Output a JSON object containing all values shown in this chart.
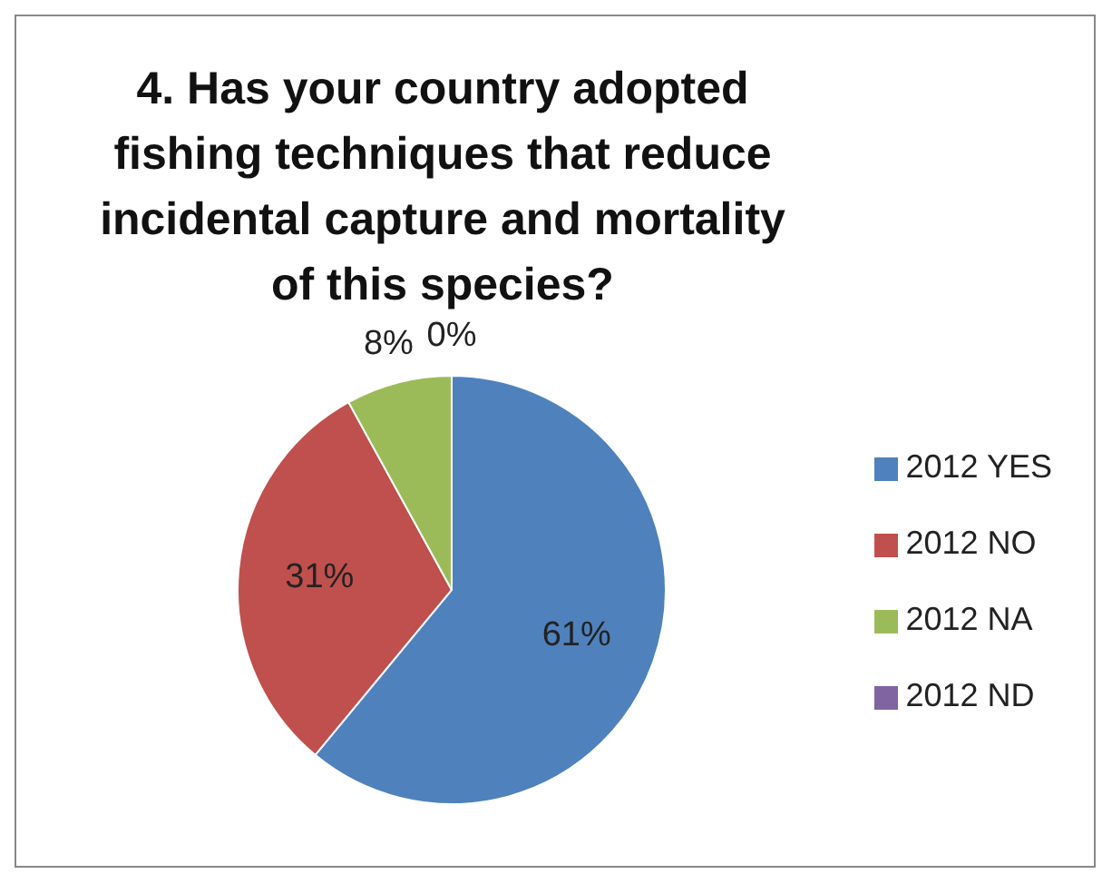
{
  "chart_data": {
    "type": "pie",
    "title": "4.  Has your country adopted fishing techniques that reduce incidental capture and mortality of this species?",
    "categories": [
      "2012 YES",
      "2012 NO",
      "2012 NA",
      "2012 ND"
    ],
    "values": [
      61,
      31,
      8,
      0
    ],
    "value_labels": [
      "61%",
      "31%",
      "8%",
      "0%"
    ],
    "colors": [
      "#4f81bd",
      "#c0504d",
      "#9bbb59",
      "#8064a2"
    ],
    "legend": "right"
  }
}
